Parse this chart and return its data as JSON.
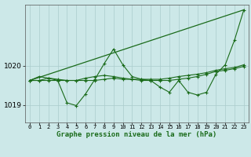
{
  "background_color": "#cce8e8",
  "grid_color": "#aacccc",
  "line_color": "#1a6b1a",
  "title": "Graphe pression niveau de la mer (hPa)",
  "xlim": [
    -0.5,
    23.5
  ],
  "ylim": [
    1018.55,
    1021.55
  ],
  "yticks": [
    1019,
    1020
  ],
  "xticks": [
    0,
    1,
    2,
    3,
    4,
    5,
    6,
    7,
    8,
    9,
    10,
    11,
    12,
    13,
    14,
    15,
    16,
    17,
    18,
    19,
    20,
    21,
    22,
    23
  ],
  "line1_x": [
    0,
    23
  ],
  "line1_y": [
    1019.62,
    1021.42
  ],
  "line2_x": [
    0,
    1,
    2,
    3,
    4,
    5,
    6,
    7,
    8,
    9,
    10,
    11,
    12,
    13,
    14,
    15,
    16,
    17,
    18,
    19,
    20,
    21,
    22,
    23
  ],
  "line2_y": [
    1019.62,
    1019.72,
    1019.68,
    1019.65,
    1019.62,
    1019.62,
    1019.68,
    1019.72,
    1019.75,
    1019.72,
    1019.68,
    1019.65,
    1019.65,
    1019.65,
    1019.65,
    1019.68,
    1019.72,
    1019.75,
    1019.78,
    1019.82,
    1019.88,
    1019.92,
    1019.95,
    1020.02
  ],
  "line3_x": [
    0,
    1,
    2,
    3,
    4,
    5,
    6,
    7,
    8,
    9,
    10,
    11,
    12,
    13,
    14,
    15,
    16,
    17,
    18,
    19,
    20,
    21,
    22,
    23
  ],
  "line3_y": [
    1019.62,
    1019.62,
    1019.68,
    1019.62,
    1019.05,
    1018.98,
    1019.28,
    1019.65,
    1020.05,
    1020.42,
    1020.02,
    1019.72,
    1019.65,
    1019.62,
    1019.45,
    1019.32,
    1019.62,
    1019.32,
    1019.25,
    1019.32,
    1019.78,
    1020.02,
    1020.65,
    1021.42
  ],
  "line4_x": [
    0,
    1,
    2,
    3,
    4,
    5,
    6,
    7,
    8,
    9,
    10,
    11,
    12,
    13,
    14,
    15,
    16,
    17,
    18,
    19,
    20,
    21,
    22,
    23
  ],
  "line4_y": [
    1019.62,
    1019.62,
    1019.62,
    1019.62,
    1019.62,
    1019.62,
    1019.62,
    1019.62,
    1019.65,
    1019.68,
    1019.65,
    1019.65,
    1019.62,
    1019.62,
    1019.62,
    1019.62,
    1019.65,
    1019.68,
    1019.72,
    1019.78,
    1019.85,
    1019.88,
    1019.92,
    1019.98
  ]
}
